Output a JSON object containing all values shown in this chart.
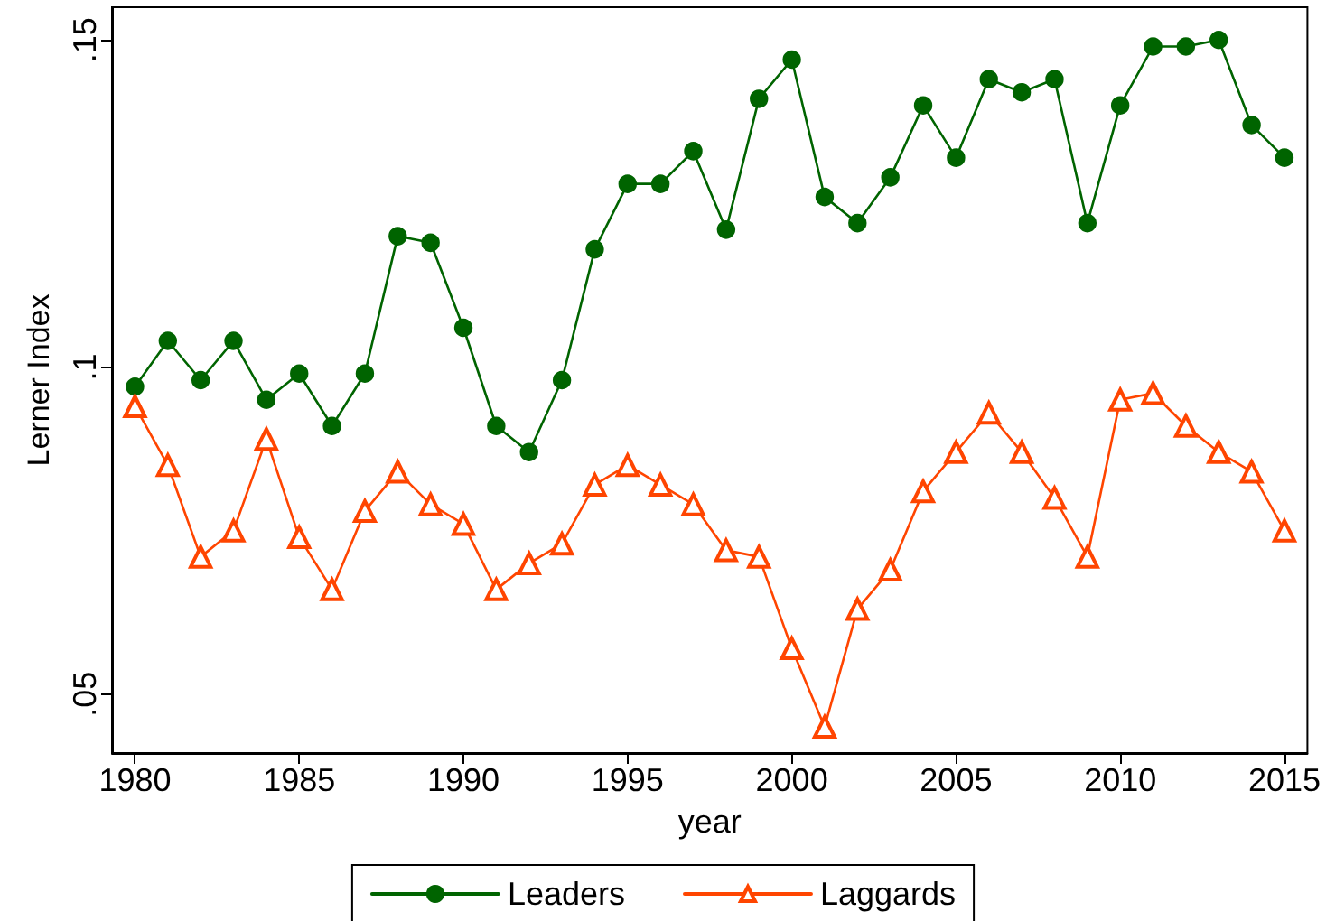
{
  "chart_data": {
    "type": "line",
    "xlabel": "year",
    "ylabel": "Lerner Index",
    "x": [
      1980,
      1981,
      1982,
      1983,
      1984,
      1985,
      1986,
      1987,
      1988,
      1989,
      1990,
      1991,
      1992,
      1993,
      1994,
      1995,
      1996,
      1997,
      1998,
      1999,
      2000,
      2001,
      2002,
      2003,
      2004,
      2005,
      2006,
      2007,
      2008,
      2009,
      2010,
      2011,
      2012,
      2013,
      2014,
      2015
    ],
    "series": [
      {
        "name": "Leaders",
        "color": "#006400",
        "marker": "circle",
        "values": [
          0.097,
          0.104,
          0.098,
          0.104,
          0.095,
          0.099,
          0.091,
          0.099,
          0.12,
          0.119,
          0.106,
          0.091,
          0.087,
          0.098,
          0.118,
          0.128,
          0.128,
          0.133,
          0.121,
          0.141,
          0.147,
          0.126,
          0.122,
          0.129,
          0.14,
          0.132,
          0.144,
          0.142,
          0.144,
          0.122,
          0.14,
          0.149,
          0.149,
          0.15,
          0.137,
          0.132
        ]
      },
      {
        "name": "Laggards",
        "color": "#ff4500",
        "marker": "triangle",
        "values": [
          0.094,
          0.085,
          0.071,
          0.075,
          0.089,
          0.074,
          0.066,
          0.078,
          0.084,
          0.079,
          0.076,
          0.066,
          0.07,
          0.073,
          0.082,
          0.085,
          0.082,
          0.079,
          0.072,
          0.071,
          0.057,
          0.045,
          0.063,
          0.069,
          0.081,
          0.087,
          0.093,
          0.087,
          0.08,
          0.071,
          0.095,
          0.096,
          0.091,
          0.087,
          0.084,
          0.075
        ]
      }
    ],
    "xlim": [
      1979.3,
      2015.7
    ],
    "xticks": [
      1980,
      1985,
      1990,
      1995,
      2000,
      2005,
      2010,
      2015
    ],
    "ylim": [
      0.041,
      0.155
    ],
    "yticks": [
      {
        "value": 0.05,
        "label": ".05"
      },
      {
        "value": 0.1,
        "label": ".1"
      },
      {
        "value": 0.15,
        "label": ".15"
      }
    ],
    "legend": "bottom",
    "line_style": "solid"
  }
}
